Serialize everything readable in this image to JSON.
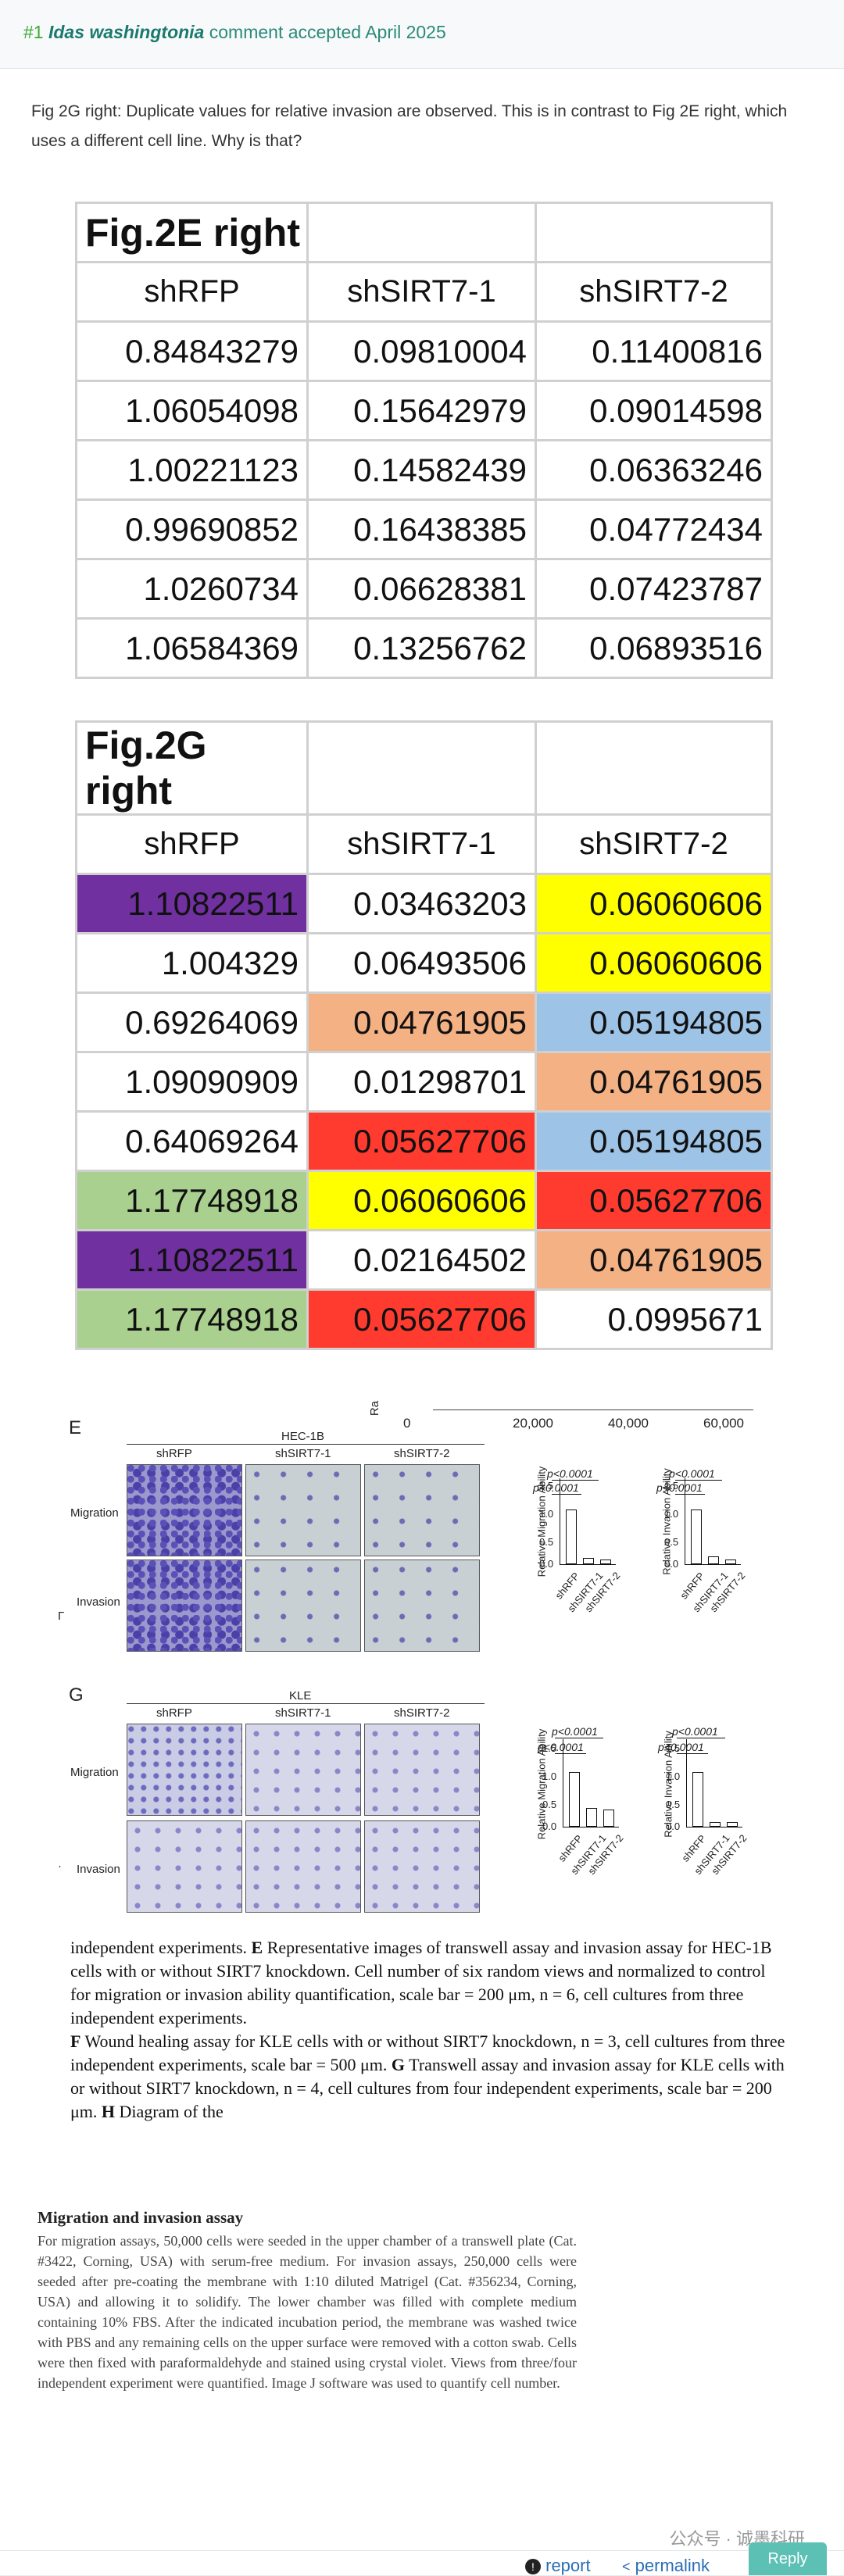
{
  "header": {
    "number": "#1",
    "author": "Idas washingtonia",
    "status": "comment accepted April 2025"
  },
  "comment": {
    "text": "Fig 2G right: Duplicate values for relative invasion are observed. This is in contrast to Fig 2E right, which uses a different cell line. Why is that?"
  },
  "table_e": {
    "title": "Fig.2E right",
    "columns": [
      "shRFP",
      "shSIRT7-1",
      "shSIRT7-2"
    ],
    "rows": [
      [
        "0.84843279",
        "0.09810004",
        "0.11400816"
      ],
      [
        "1.06054098",
        "0.15642979",
        "0.09014598"
      ],
      [
        "1.00221123",
        "0.14582439",
        "0.06363246"
      ],
      [
        "0.99690852",
        "0.16438385",
        "0.04772434"
      ],
      [
        "1.0260734",
        "0.06628381",
        "0.07423787"
      ],
      [
        "1.06584369",
        "0.13256762",
        "0.06893516"
      ]
    ]
  },
  "table_g": {
    "title": "Fig.2G right",
    "columns": [
      "shRFP",
      "shSIRT7-1",
      "shSIRT7-2"
    ],
    "rows": [
      [
        "1.10822511",
        "0.03463203",
        "0.06060606"
      ],
      [
        "1.004329",
        "0.06493506",
        "0.06060606"
      ],
      [
        "0.69264069",
        "0.04761905",
        "0.05194805"
      ],
      [
        "1.09090909",
        "0.01298701",
        "0.04761905"
      ],
      [
        "0.64069264",
        "0.05627706",
        "0.05194805"
      ],
      [
        "1.17748918",
        "0.06060606",
        "0.05627706"
      ],
      [
        "1.10822511",
        "0.02164502",
        "0.04761905"
      ],
      [
        "1.17748918",
        "0.05627706",
        "0.0995671"
      ]
    ],
    "highlight_colors": {
      "purple": "#7030a0",
      "yellow": "#ffff00",
      "orange": "#f4b183",
      "blue": "#9dc3e6",
      "red": "#ff3b30",
      "green": "#a9d08e"
    }
  },
  "figure": {
    "top_axis_label": "Ra",
    "top_axis_ticks": [
      "0",
      "20,000",
      "40,000",
      "60,000"
    ],
    "panel_e": {
      "letter": "E",
      "cell_line": "HEC-1B",
      "columns": [
        "shRFP",
        "shSIRT7-1",
        "shSIRT7-2"
      ],
      "rows": [
        "Migration",
        "Invasion"
      ],
      "side_mark": "Γ",
      "chart1_ylabel": "Relative Migration Ability",
      "chart2_ylabel": "Relative Invasion Ability",
      "p_values": [
        "p<0.0001",
        "p<0.0001"
      ],
      "y_ticks": [
        "0.0",
        "0.5",
        "1.0",
        "1.5"
      ],
      "bar_labels": [
        "shRFP",
        "shSIRT7-1",
        "shSIRT7-2"
      ]
    },
    "panel_g": {
      "letter": "G",
      "cell_line": "KLE",
      "columns": [
        "shRFP",
        "shSIRT7-1",
        "shSIRT7-2"
      ],
      "rows": [
        "Migration",
        "Invasion"
      ],
      "side_mark": "·",
      "chart1_ylabel": "Relative Migration Ability",
      "chart2_ylabel": "Relative Invasion Ability",
      "p_values": [
        "p<0.0001",
        "p<0.0001"
      ],
      "y_ticks": [
        "0.0",
        "0.5",
        "1.0",
        "1.5"
      ],
      "bar_labels": [
        "shRFP",
        "shSIRT7-1",
        "shSIRT7-2"
      ]
    }
  },
  "legend": {
    "p1": "independent experiments. ",
    "b1": "E",
    "p2": " Representative images of transwell assay and invasion assay for HEC-1B cells with or without SIRT7 knockdown. Cell number of six random views and normalized to control for migration or invasion ability quantification, scale bar = 200 μm, n = 6, cell cultures from three independent experiments.",
    "b2": "F",
    "p3": " Wound healing assay for KLE cells with or without SIRT7 knockdown, n = 3, cell cultures from three independent experiments, scale bar = 500 μm. ",
    "b3": "G",
    "p4": " Transwell assay and invasion assay for KLE cells with or without SIRT7 knockdown, n = 4, cell cultures from four independent experiments, scale bar = 200 μm. ",
    "b4": "H",
    "p5": " Diagram of the"
  },
  "methods": {
    "title": "Migration and invasion assay",
    "body": "For migration assays, 50,000 cells were seeded in the upper chamber of a transwell plate (Cat. #3422, Corning, USA) with serum-free medium. For invasion assays, 250,000 cells were seeded after pre-coating the membrane with 1:10 diluted Matrigel (Cat. #356234, Corning, USA) and allowing it to solidify. The lower chamber was filled with complete medium containing 10% FBS. After the indicated incubation period, the membrane was washed twice with PBS and any remaining cells on the upper surface were removed with a cotton swab. Cells were then fixed with paraformaldehyde and stained using crystal violet. Views from three/four independent experiment were quantified. Image J software was used to quantify cell number."
  },
  "watermark": "公众号 · 诚墨科研",
  "footer": {
    "report": "report",
    "permalink": "permalink",
    "reply": "Reply"
  }
}
